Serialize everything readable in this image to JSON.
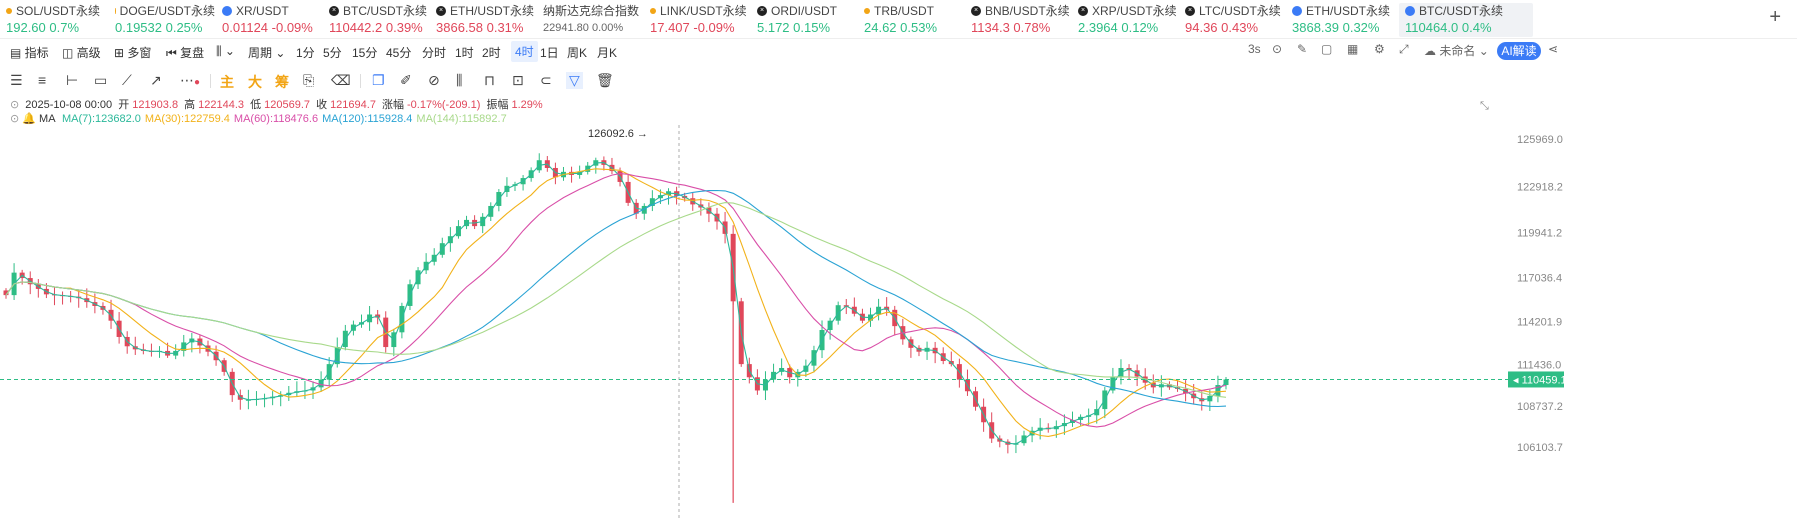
{
  "tickers": [
    {
      "name": "SOL/USDT永续",
      "value": "192.60",
      "change": "0.7%",
      "dir": "up",
      "icon": "sol-icon",
      "iconColor": "#f2a516",
      "x": 6,
      "w": 100
    },
    {
      "name": "DOGE/USDT永续",
      "value": "0.19532",
      "change": "0.25%",
      "dir": "up",
      "icon": "doge-icon",
      "iconColor": "#f2a516",
      "x": 115,
      "w": 100
    },
    {
      "name": "XR/USDT",
      "value": "0.01124",
      "change": "-0.09%",
      "dir": "down",
      "icon": "xr-icon",
      "iconColor": "#3b7bf6",
      "x": 222,
      "w": 100
    },
    {
      "name": "BTC/USDT永续",
      "value": "110442.2",
      "change": "0.39%",
      "dir": "down",
      "icon": "btc-x-icon",
      "iconColor": "#222",
      "x": 329,
      "w": 100
    },
    {
      "name": "ETH/USDT永续",
      "value": "3866.58",
      "change": "0.31%",
      "dir": "down",
      "icon": "eth-x-icon",
      "iconColor": "#222",
      "x": 436,
      "w": 100
    },
    {
      "name": "纳斯达克综合指数",
      "value": "22941.80",
      "change": "0.00%",
      "dir": "flat",
      "icon": "",
      "iconColor": "",
      "x": 543,
      "w": 100
    },
    {
      "name": "LINK/USDT永续",
      "value": "17.407",
      "change": "-0.09%",
      "dir": "down",
      "icon": "link-icon",
      "iconColor": "#f2a516",
      "x": 650,
      "w": 100
    },
    {
      "name": "ORDI/USDT",
      "value": "5.172",
      "change": "0.15%",
      "dir": "up",
      "icon": "ordi-icon",
      "iconColor": "#222",
      "x": 757,
      "w": 100
    },
    {
      "name": "TRB/USDT",
      "value": "24.62",
      "change": "0.53%",
      "dir": "up",
      "icon": "trb-icon",
      "iconColor": "#f2a516",
      "x": 864,
      "w": 100
    },
    {
      "name": "BNB/USDT永续",
      "value": "1134.3",
      "change": "0.78%",
      "dir": "down",
      "icon": "bnb-icon",
      "iconColor": "#222",
      "x": 971,
      "w": 100
    },
    {
      "name": "XRP/USDT永续",
      "value": "2.3964",
      "change": "0.12%",
      "dir": "up",
      "icon": "xrp-icon",
      "iconColor": "#222",
      "x": 1078,
      "w": 100
    },
    {
      "name": "LTC/USDT永续",
      "value": "94.36",
      "change": "0.43%",
      "dir": "down",
      "icon": "ltc-icon",
      "iconColor": "#222",
      "x": 1185,
      "w": 100
    },
    {
      "name": "ETH/USDT永续",
      "value": "3868.39",
      "change": "0.32%",
      "dir": "up",
      "icon": "eth-icon",
      "iconColor": "#3b7bf6",
      "x": 1292,
      "w": 100
    },
    {
      "name": "BTC/USDT永续",
      "value": "110464.0",
      "change": "0.4%",
      "dir": "up",
      "icon": "btc-drop-icon",
      "iconColor": "#3b7bf6",
      "x": 1399,
      "w": 128,
      "active": true
    }
  ],
  "toolbar": {
    "indicator": "指标",
    "advanced": "高级",
    "multi_window": "多窗",
    "replay": "复盘",
    "period": "周期",
    "intervals": [
      "1分",
      "5分",
      "15分",
      "45分",
      "分时",
      "1时",
      "2时",
      "4时",
      "1日",
      "周K",
      "月K"
    ],
    "active_interval": "4时",
    "refresh": "3s",
    "layout_name": "未命名",
    "ai": "AI解读"
  },
  "drawing_tools": {
    "main": "主",
    "big": "大",
    "chip": "筹"
  },
  "ohlc": {
    "date": "2025-10-08 00:00",
    "open_label": "开",
    "open": "121903.8",
    "high_label": "高",
    "high": "122144.3",
    "low_label": "低",
    "low": "120569.7",
    "close_label": "收",
    "close": "121694.7",
    "chg_label": "涨幅",
    "chg": "-0.17%(-209.1)",
    "amp_label": "振幅",
    "amp": "1.29%"
  },
  "ma": {
    "label": "MA",
    "items": [
      {
        "text": "MA(7):123682.0",
        "color": "#2bb89a"
      },
      {
        "text": "MA(30):122759.4",
        "color": "#f2b21a"
      },
      {
        "text": "MA(60):118476.6",
        "color": "#d94fa8"
      },
      {
        "text": "MA(120):115928.4",
        "color": "#2aa3d4"
      },
      {
        "text": "MA(144):115892.7",
        "color": "#a8d98a"
      }
    ]
  },
  "colors": {
    "up": "#2ebd85",
    "down": "#e0475a",
    "flat": "#666",
    "accent": "#3b7bf6"
  },
  "chart_data": {
    "type": "candlestick",
    "y_ticks": [
      125969.0,
      122918.2,
      119941.2,
      117036.4,
      114201.9,
      111436.0,
      108737.2,
      106103.7
    ],
    "y_tick_labels": [
      "125969.0",
      "122918.2",
      "119941.2",
      "117036.4",
      "114201.9",
      "111436.0",
      "108737.2",
      "106103.7"
    ],
    "last_price": "110459.1",
    "last_price_value": 110459.1,
    "high_marker": "126092.6",
    "high_marker_value": 126092.6,
    "closes": [
      115900,
      117350,
      117000,
      116600,
      116300,
      115950,
      115900,
      115850,
      115800,
      115700,
      115450,
      115200,
      114950,
      114250,
      113200,
      112600,
      112400,
      112300,
      112250,
      112300,
      112000,
      112300,
      112850,
      113100,
      112650,
      112250,
      111700,
      110950,
      109450,
      109150,
      109150,
      109200,
      109250,
      109350,
      109450,
      109600,
      109700,
      109750,
      109950,
      110450,
      111450,
      112550,
      113600,
      114000,
      114150,
      114650,
      114450,
      112550,
      113500,
      115200,
      116600,
      117500,
      118050,
      118500,
      119250,
      119700,
      120350,
      120750,
      120350,
      120950,
      121650,
      122550,
      122950,
      123050,
      123450,
      123950,
      124600,
      124100,
      123500,
      123850,
      123650,
      123850,
      124250,
      124600,
      124300,
      123900,
      123200,
      121850,
      121150,
      121650,
      122150,
      122350,
      122600,
      122300,
      122150,
      121750,
      121550,
      121150,
      120650,
      119850,
      115500,
      111450,
      110600,
      109750,
      110450,
      110950,
      111200,
      110600,
      110950,
      111350,
      112350,
      113650,
      114250,
      115250,
      115150,
      114700,
      114250,
      114650,
      115150,
      114950,
      113900,
      113050,
      112500,
      112250,
      112500,
      112150,
      111650,
      111450,
      110450,
      109700,
      108700,
      107700,
      106650,
      106450,
      106250,
      106350,
      106850,
      107150,
      107350,
      107250,
      107450,
      107650,
      107850,
      108050,
      108150,
      108550,
      109750,
      110650,
      111200,
      111050,
      110650,
      110250,
      109950,
      110150,
      109950,
      109850,
      109550,
      109250,
      109050,
      109400,
      110100,
      110459
    ]
  }
}
